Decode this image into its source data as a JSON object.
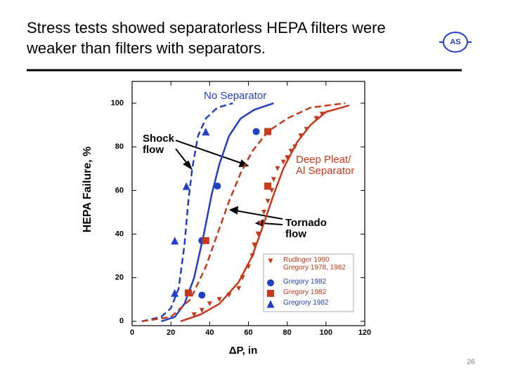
{
  "title": "Stress tests showed separatorless HEPA filters were weaker than filters with separators.",
  "logo": "AS",
  "page_number": "26",
  "chart_data": {
    "type": "line",
    "x_label": "ΔP, in",
    "y_label": "HEPA Failure, %",
    "xlim": [
      0,
      120
    ],
    "xticks": [
      0,
      20,
      40,
      60,
      80,
      100,
      120
    ],
    "ylim": [
      -2,
      110
    ],
    "yticks": [
      0,
      20,
      40,
      60,
      80,
      100
    ],
    "annotations": [
      "No Separator",
      "Shock flow",
      "Deep Pleat/ Al Separator",
      "Tornado flow"
    ],
    "series": [
      {
        "mode": "line",
        "dash": true,
        "color": "#1f3fc4",
        "x": [
          5,
          15,
          20,
          24,
          27,
          29,
          31,
          34,
          38,
          44,
          52
        ],
        "values": [
          0,
          2,
          6,
          15,
          35,
          55,
          70,
          85,
          93,
          98,
          100
        ]
      },
      {
        "mode": "line",
        "dash": false,
        "color": "#1f3fc4",
        "x": [
          15,
          22,
          27,
          32,
          37,
          41,
          45,
          50,
          56,
          63,
          73
        ],
        "values": [
          0,
          2,
          8,
          20,
          40,
          58,
          72,
          85,
          93,
          97,
          100
        ]
      },
      {
        "mode": "line",
        "dash": true,
        "color": "#c8381a",
        "x": [
          5,
          20,
          30,
          38,
          44,
          50,
          56,
          62,
          70,
          80,
          92,
          110
        ],
        "values": [
          0,
          2,
          10,
          25,
          40,
          55,
          68,
          78,
          87,
          93,
          98,
          100
        ]
      },
      {
        "mode": "line",
        "dash": false,
        "color": "#c8381a",
        "x": [
          25,
          35,
          45,
          55,
          62,
          68,
          73,
          78,
          85,
          92,
          100,
          112
        ],
        "values": [
          0,
          3,
          8,
          18,
          30,
          45,
          58,
          70,
          82,
          90,
          96,
          99
        ]
      },
      {
        "mode": "markers",
        "marker": "triangle-down",
        "color": "#c8381a",
        "name": "Rudlnger 1990 Gregory 1978, 1982",
        "x": [
          32,
          36,
          40,
          45,
          50,
          55,
          57,
          60,
          62,
          63,
          65,
          66,
          68,
          70,
          72,
          73,
          75,
          78,
          80,
          82,
          84,
          87,
          90,
          95,
          98
        ],
        "values": [
          3,
          5,
          8,
          10,
          12,
          15,
          20,
          25,
          30,
          35,
          40,
          45,
          50,
          55,
          60,
          65,
          70,
          73,
          75,
          78,
          80,
          85,
          88,
          93,
          95
        ]
      },
      {
        "mode": "markers",
        "marker": "circle",
        "color": "#1f3fc4",
        "name": "Gregory 1982",
        "x": [
          36,
          36,
          44,
          64
        ],
        "values": [
          12,
          37,
          62,
          87
        ]
      },
      {
        "mode": "markers",
        "marker": "square",
        "color": "#c8381a",
        "name": "Gregory 1982",
        "x": [
          29,
          38,
          70,
          70
        ],
        "values": [
          13,
          37,
          62,
          87
        ]
      },
      {
        "mode": "markers",
        "marker": "triangle-up",
        "color": "#1f3fc4",
        "name": "Gregrory 1982",
        "x": [
          22,
          22,
          28,
          38
        ],
        "values": [
          13,
          37,
          62,
          87
        ]
      }
    ]
  }
}
